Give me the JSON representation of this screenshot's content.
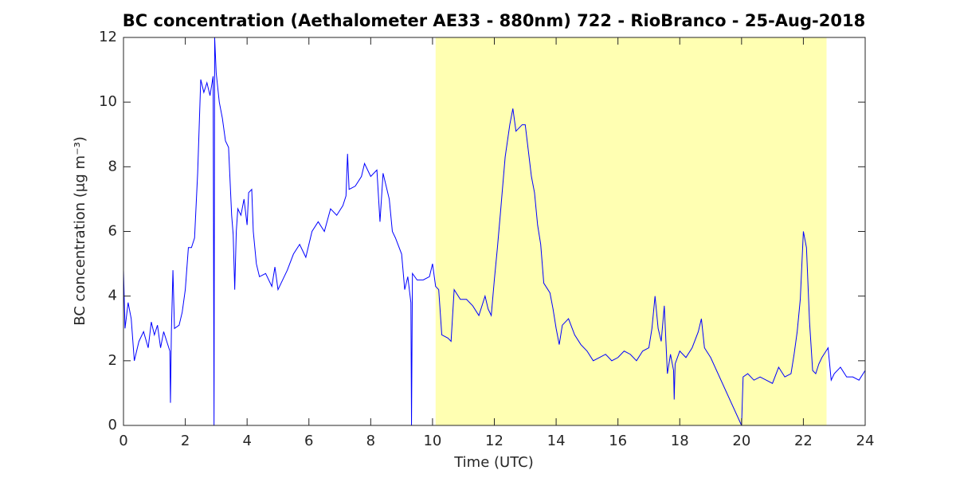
{
  "chart_data": {
    "type": "line",
    "title": "BC concentration (Aethalometer AE33 - 880nm) 722 - RioBranco - 25-Aug-2018",
    "xlabel": "Time (UTC)",
    "ylabel": "BC concentration (μg m⁻³)",
    "xlim": [
      0,
      24
    ],
    "xticks": [
      0,
      2,
      4,
      6,
      8,
      10,
      12,
      14,
      16,
      18,
      20,
      22,
      24
    ],
    "ylim": [
      0,
      12
    ],
    "yticks": [
      0,
      2,
      4,
      6,
      8,
      10,
      12
    ],
    "highlight": {
      "xrange": [
        10.1,
        22.75
      ],
      "color": "#ffffb2"
    },
    "series": [
      {
        "color": "#0000ff",
        "x": [
          0.0,
          0.05,
          0.15,
          0.25,
          0.35,
          0.5,
          0.65,
          0.8,
          0.9,
          1.0,
          1.1,
          1.2,
          1.3,
          1.4,
          1.5,
          1.52,
          1.55,
          1.6,
          1.65,
          1.8,
          1.9,
          2.0,
          2.1,
          2.2,
          2.3,
          2.4,
          2.5,
          2.6,
          2.7,
          2.8,
          2.9,
          2.93,
          2.95,
          3.0,
          3.1,
          3.2,
          3.3,
          3.4,
          3.5,
          3.55,
          3.6,
          3.65,
          3.7,
          3.8,
          3.9,
          4.0,
          4.05,
          4.15,
          4.2,
          4.3,
          4.4,
          4.6,
          4.8,
          4.9,
          5.0,
          5.1,
          5.3,
          5.5,
          5.7,
          5.9,
          6.1,
          6.3,
          6.5,
          6.7,
          6.9,
          7.1,
          7.2,
          7.25,
          7.3,
          7.5,
          7.7,
          7.8,
          8.0,
          8.2,
          8.3,
          8.4,
          8.6,
          8.7,
          8.8,
          9.0,
          9.1,
          9.2,
          9.3,
          9.32,
          9.35,
          9.5,
          9.7,
          9.9,
          10.0,
          10.1,
          10.2,
          10.3,
          10.5,
          10.6,
          10.7,
          10.9,
          11.1,
          11.3,
          11.5,
          11.7,
          11.8,
          11.9,
          12.0,
          12.1,
          12.2,
          12.35,
          12.5,
          12.6,
          12.7,
          12.9,
          13.0,
          13.1,
          13.2,
          13.3,
          13.4,
          13.5,
          13.6,
          13.8,
          13.9,
          14.0,
          14.1,
          14.2,
          14.4,
          14.6,
          14.8,
          15.0,
          15.2,
          15.4,
          15.6,
          15.8,
          16.0,
          16.2,
          16.4,
          16.6,
          16.8,
          17.0,
          17.1,
          17.2,
          17.3,
          17.4,
          17.5,
          17.6,
          17.7,
          17.8,
          17.82,
          17.85,
          18.0,
          18.2,
          18.4,
          18.6,
          18.7,
          18.8,
          19.0,
          20.0,
          20.05,
          20.2,
          20.4,
          20.6,
          20.8,
          21.0,
          21.2,
          21.4,
          21.6,
          21.7,
          21.8,
          21.9,
          22.0,
          22.1,
          22.2,
          22.3,
          22.4,
          22.5,
          22.6,
          22.8,
          22.9,
          23.0,
          23.2,
          23.4,
          23.6,
          23.8,
          24.0
        ],
        "values": [
          4.8,
          3.0,
          3.8,
          3.3,
          2.0,
          2.6,
          2.9,
          2.4,
          3.2,
          2.8,
          3.1,
          2.4,
          2.9,
          2.6,
          2.3,
          0.7,
          2.9,
          4.8,
          3.0,
          3.1,
          3.5,
          4.2,
          5.5,
          5.5,
          5.8,
          7.8,
          10.7,
          10.3,
          10.6,
          10.2,
          10.8,
          0.0,
          12.0,
          10.9,
          10.0,
          9.5,
          8.8,
          8.6,
          6.5,
          5.9,
          4.2,
          6.0,
          6.7,
          6.5,
          7.0,
          6.2,
          7.2,
          7.3,
          6.0,
          5.0,
          4.6,
          4.7,
          4.3,
          4.9,
          4.2,
          4.4,
          4.8,
          5.3,
          5.6,
          5.2,
          6.0,
          6.3,
          6.0,
          6.7,
          6.5,
          6.8,
          7.1,
          8.4,
          7.3,
          7.4,
          7.7,
          8.1,
          7.7,
          7.9,
          6.3,
          7.8,
          7.0,
          6.0,
          5.8,
          5.3,
          4.2,
          4.6,
          3.8,
          0.0,
          4.7,
          4.5,
          4.5,
          4.6,
          5.0,
          4.3,
          4.2,
          2.8,
          2.7,
          2.6,
          4.2,
          3.9,
          3.9,
          3.7,
          3.4,
          4.0,
          3.6,
          3.4,
          4.5,
          5.5,
          6.6,
          8.3,
          9.3,
          9.8,
          9.1,
          9.3,
          9.3,
          8.5,
          7.7,
          7.2,
          6.2,
          5.6,
          4.4,
          4.1,
          3.6,
          3.0,
          2.5,
          3.1,
          3.3,
          2.8,
          2.5,
          2.3,
          2.0,
          2.1,
          2.2,
          2.0,
          2.1,
          2.3,
          2.2,
          2.0,
          2.3,
          2.4,
          3.0,
          4.0,
          3.0,
          2.6,
          3.7,
          1.6,
          2.2,
          1.7,
          0.8,
          1.9,
          2.3,
          2.1,
          2.4,
          2.9,
          3.3,
          2.4,
          2.1,
          0.0,
          1.5,
          1.6,
          1.4,
          1.5,
          1.4,
          1.3,
          1.8,
          1.5,
          1.6,
          2.2,
          2.9,
          3.9,
          6.0,
          5.5,
          3.2,
          1.7,
          1.6,
          1.9,
          2.1,
          2.4,
          1.4,
          1.6,
          1.8,
          1.5,
          1.5,
          1.4,
          1.7
        ]
      }
    ]
  }
}
